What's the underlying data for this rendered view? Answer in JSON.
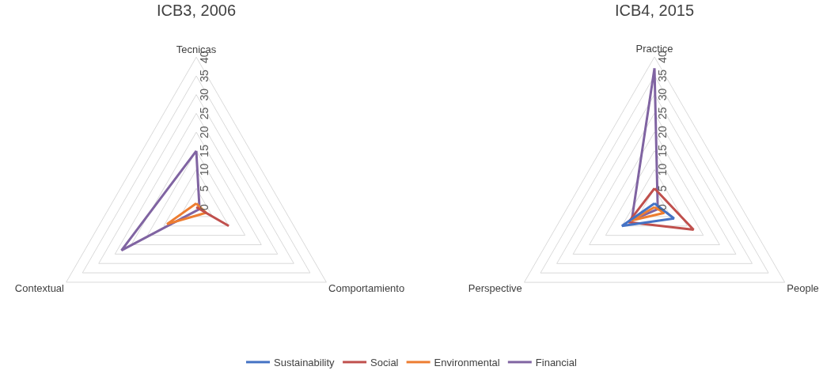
{
  "chart_data": [
    {
      "type": "radar",
      "title": "ICB3, 2006",
      "categories": [
        "Tecnicas",
        "Comportamiento",
        "Contextual"
      ],
      "ylim": [
        0,
        40
      ],
      "yticks": [
        0,
        5,
        10,
        15,
        20,
        25,
        30,
        35,
        40
      ],
      "grid": true,
      "legend": "bottom",
      "series": [
        {
          "name": "Social",
          "color": "#c0504d",
          "values": [
            0,
            10,
            0
          ]
        },
        {
          "name": "Environmental",
          "color": "#ed7d31",
          "values": [
            1,
            3,
            9
          ]
        },
        {
          "name": "Financial",
          "color": "#8064a2",
          "values": [
            15,
            1,
            23
          ]
        }
      ]
    },
    {
      "type": "radar",
      "title": "ICB4, 2015",
      "categories": [
        "Practice",
        "People",
        "Perspective"
      ],
      "ylim": [
        0,
        40
      ],
      "yticks": [
        0,
        5,
        10,
        15,
        20,
        25,
        30,
        35,
        40
      ],
      "grid": true,
      "legend": "bottom",
      "series": [
        {
          "name": "Sustainability",
          "color": "#4472c4",
          "values": [
            1,
            6,
            10
          ]
        },
        {
          "name": "Social",
          "color": "#c0504d",
          "values": [
            5,
            12,
            8
          ]
        },
        {
          "name": "Environmental",
          "color": "#ed7d31",
          "values": [
            0,
            3,
            7
          ]
        },
        {
          "name": "Financial",
          "color": "#8064a2",
          "values": [
            37,
            1,
            7
          ]
        }
      ]
    }
  ]
}
